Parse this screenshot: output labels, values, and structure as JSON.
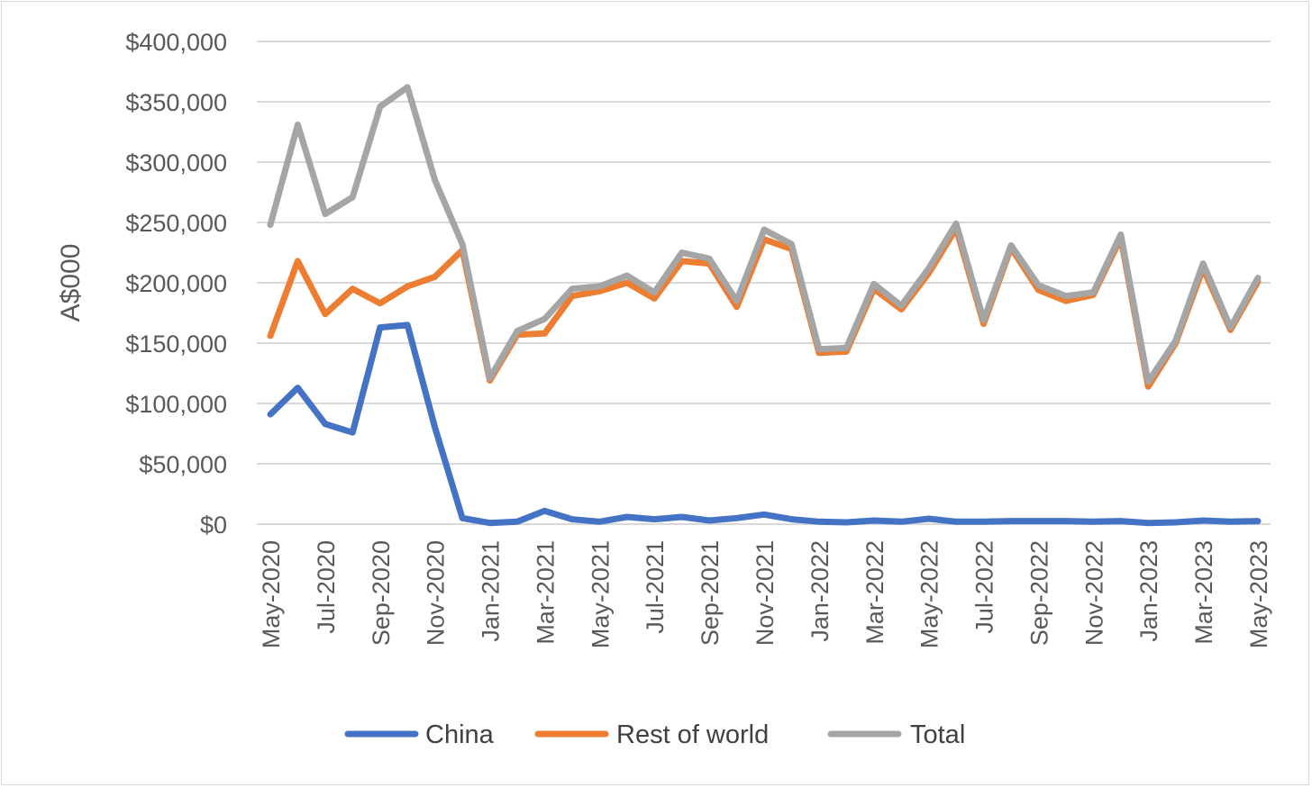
{
  "chart_data": {
    "type": "line",
    "title": "",
    "xlabel": "",
    "ylabel": "A$000",
    "ylim": [
      0,
      400000
    ],
    "yticks": [
      0,
      50000,
      100000,
      150000,
      200000,
      250000,
      300000,
      350000,
      400000
    ],
    "ytick_labels": [
      "$0",
      "$50,000",
      "$100,000",
      "$150,000",
      "$200,000",
      "$250,000",
      "$300,000",
      "$350,000",
      "$400,000"
    ],
    "grid": "horizontal",
    "legend": "bottom",
    "x": [
      "May-2020",
      "Jun-2020",
      "Jul-2020",
      "Aug-2020",
      "Sep-2020",
      "Oct-2020",
      "Nov-2020",
      "Dec-2020",
      "Jan-2021",
      "Feb-2021",
      "Mar-2021",
      "Apr-2021",
      "May-2021",
      "Jun-2021",
      "Jul-2021",
      "Aug-2021",
      "Sep-2021",
      "Oct-2021",
      "Nov-2021",
      "Dec-2021",
      "Jan-2022",
      "Feb-2022",
      "Mar-2022",
      "Apr-2022",
      "May-2022",
      "Jun-2022",
      "Jul-2022",
      "Aug-2022",
      "Sep-2022",
      "Oct-2022",
      "Nov-2022",
      "Dec-2022",
      "Jan-2023",
      "Feb-2023",
      "Mar-2023",
      "Apr-2023",
      "May-2023"
    ],
    "xtick_labels": [
      "May-2020",
      "Jul-2020",
      "Sep-2020",
      "Nov-2020",
      "Jan-2021",
      "Mar-2021",
      "May-2021",
      "Jul-2021",
      "Sep-2021",
      "Nov-2021",
      "Jan-2022",
      "Mar-2022",
      "May-2022",
      "Jul-2022",
      "Sep-2022",
      "Nov-2022",
      "Jan-2023",
      "Mar-2023",
      "May-2023"
    ],
    "series": [
      {
        "name": "China",
        "color": "#4472C4",
        "values": [
          91000,
          113000,
          83000,
          76000,
          163000,
          165000,
          80000,
          5000,
          1000,
          2000,
          11000,
          4000,
          2000,
          6000,
          4000,
          6000,
          3000,
          5000,
          8000,
          4000,
          2000,
          1500,
          3000,
          2000,
          4500,
          2000,
          2000,
          2500,
          2500,
          2500,
          2000,
          2500,
          1000,
          1500,
          3000,
          2000,
          2500
        ]
      },
      {
        "name": "Rest of world",
        "color": "#ED7D31",
        "values": [
          156000,
          218000,
          174000,
          195000,
          183000,
          197000,
          205000,
          227000,
          119000,
          157000,
          158000,
          189000,
          193000,
          200000,
          187000,
          218000,
          216000,
          180000,
          236000,
          228000,
          142000,
          143000,
          195000,
          178000,
          208000,
          245000,
          166000,
          229000,
          194000,
          185000,
          190000,
          237000,
          114000,
          150000,
          212000,
          161000,
          201000
        ]
      },
      {
        "name": "Total",
        "color": "#A5A5A5",
        "values": [
          248000,
          331000,
          257000,
          271000,
          346000,
          362000,
          285000,
          232000,
          121000,
          160000,
          170000,
          195000,
          197000,
          206000,
          192000,
          225000,
          220000,
          185000,
          244000,
          232000,
          145000,
          146000,
          199000,
          181000,
          212000,
          249000,
          169000,
          231000,
          198000,
          189000,
          192000,
          240000,
          118000,
          152000,
          216000,
          163000,
          204000
        ]
      }
    ]
  }
}
